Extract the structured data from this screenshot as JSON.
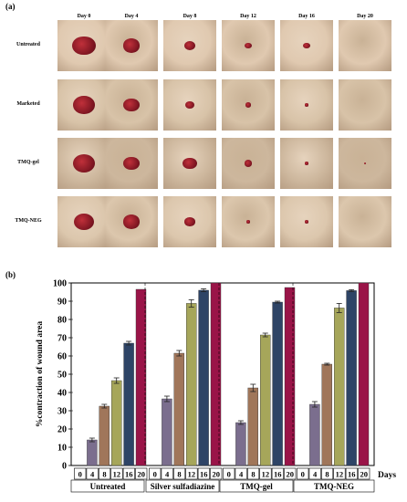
{
  "panel_a": {
    "letter": "(a)",
    "columns": [
      "Day 0",
      "Day 4",
      "Day 8",
      "Day 12",
      "Day 16",
      "Day 20"
    ],
    "rows": [
      {
        "label": "Untreated",
        "skin": "#e0c9b0",
        "wound_sizes": [
          0.62,
          0.45,
          0.3,
          0.18,
          0.2,
          0.0
        ]
      },
      {
        "label": "Marketed",
        "skin": "#d8c3a8",
        "wound_sizes": [
          0.58,
          0.42,
          0.26,
          0.16,
          0.12,
          0.0
        ]
      },
      {
        "label": "TMQ-gel",
        "skin": "#cdb79d",
        "wound_sizes": [
          0.6,
          0.44,
          0.38,
          0.22,
          0.12,
          0.05
        ]
      },
      {
        "label": "TMQ-NEG",
        "skin": "#dcc7ad",
        "wound_sizes": [
          0.56,
          0.46,
          0.28,
          0.12,
          0.1,
          0.0
        ]
      }
    ]
  },
  "panel_b": {
    "letter": "(b)"
  },
  "chart_data": {
    "type": "bar",
    "ylabel": "%contraction of wound area",
    "xlabel": "Days",
    "ylim": [
      0,
      100
    ],
    "yticks": [
      0,
      10,
      20,
      30,
      40,
      50,
      60,
      70,
      80,
      90,
      100
    ],
    "day_ticks": [
      "0",
      "4",
      "8",
      "12",
      "16",
      "20"
    ],
    "day_colors": [
      "#ffffff",
      "#7b6e8e",
      "#a0765a",
      "#a6a65a",
      "#2e4466",
      "#9a1448"
    ],
    "groups": [
      {
        "name": "Untreated",
        "values": [
          0,
          14,
          32.5,
          46.5,
          67,
          96.5
        ],
        "errors": [
          0,
          1,
          1,
          1.5,
          1,
          0
        ]
      },
      {
        "name": "Silver sulfadiazine",
        "values": [
          0,
          36.5,
          61.5,
          88.8,
          96,
          100
        ],
        "errors": [
          0,
          1.5,
          1.5,
          2,
          0.8,
          0
        ]
      },
      {
        "name": "TMQ-gel",
        "values": [
          0,
          23.5,
          42.5,
          71.5,
          89.5,
          97.5
        ],
        "errors": [
          0,
          1,
          2,
          1,
          0.5,
          0
        ]
      },
      {
        "name": "TMQ-NEG",
        "values": [
          0,
          33.5,
          55.5,
          86.3,
          95.8,
          100
        ],
        "errors": [
          0,
          1.5,
          0.5,
          2.5,
          0.5,
          0
        ]
      }
    ]
  }
}
